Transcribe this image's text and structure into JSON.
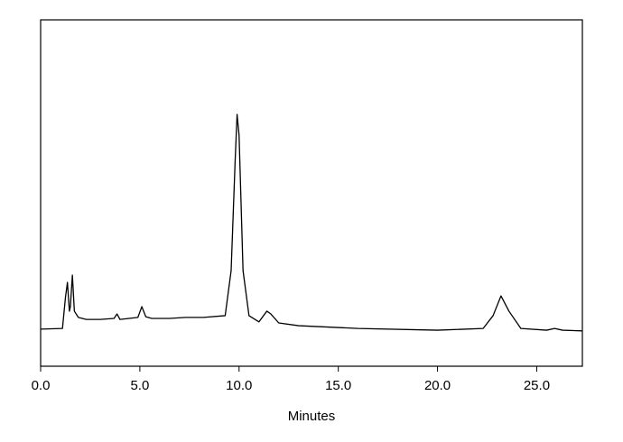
{
  "chart_data": {
    "type": "line",
    "xlabel": "Minutes",
    "xlim": [
      0,
      27.3
    ],
    "ylim": [
      0,
      100
    ],
    "xticks": [
      {
        "value": 0,
        "label": "0.0"
      },
      {
        "value": 5,
        "label": "5.0"
      },
      {
        "value": 10,
        "label": "10.0"
      },
      {
        "value": 15,
        "label": "15.0"
      },
      {
        "value": 20,
        "label": "20.0"
      },
      {
        "value": 25,
        "label": "25.0"
      }
    ],
    "x": [
      0,
      1.1,
      1.25,
      1.35,
      1.45,
      1.5,
      1.6,
      1.7,
      1.9,
      2.3,
      3.0,
      3.7,
      3.85,
      4.0,
      4.9,
      5.1,
      5.3,
      5.6,
      6.5,
      7.3,
      8.2,
      9.3,
      9.6,
      9.8,
      9.9,
      10.0,
      10.2,
      10.5,
      11.0,
      11.4,
      11.6,
      12.0,
      13.0,
      16.0,
      20.0,
      22.3,
      22.8,
      23.2,
      23.6,
      24.2,
      25.5,
      25.9,
      26.3,
      27.3
    ],
    "series": [
      {
        "color": "#000000",
        "values": [
          10.7,
          10.9,
          19.8,
          24.2,
          15.9,
          17.2,
          26.3,
          15.9,
          14.1,
          13.5,
          13.5,
          13.8,
          15.1,
          13.5,
          14.1,
          17.2,
          14.3,
          13.8,
          13.8,
          14.1,
          14.1,
          14.6,
          27.6,
          58.9,
          72.7,
          66.7,
          27.6,
          14.6,
          12.8,
          15.9,
          15.1,
          12.5,
          11.7,
          10.9,
          10.4,
          10.9,
          14.6,
          20.3,
          15.9,
          10.9,
          10.4,
          10.9,
          10.4,
          10.2
        ]
      }
    ]
  }
}
